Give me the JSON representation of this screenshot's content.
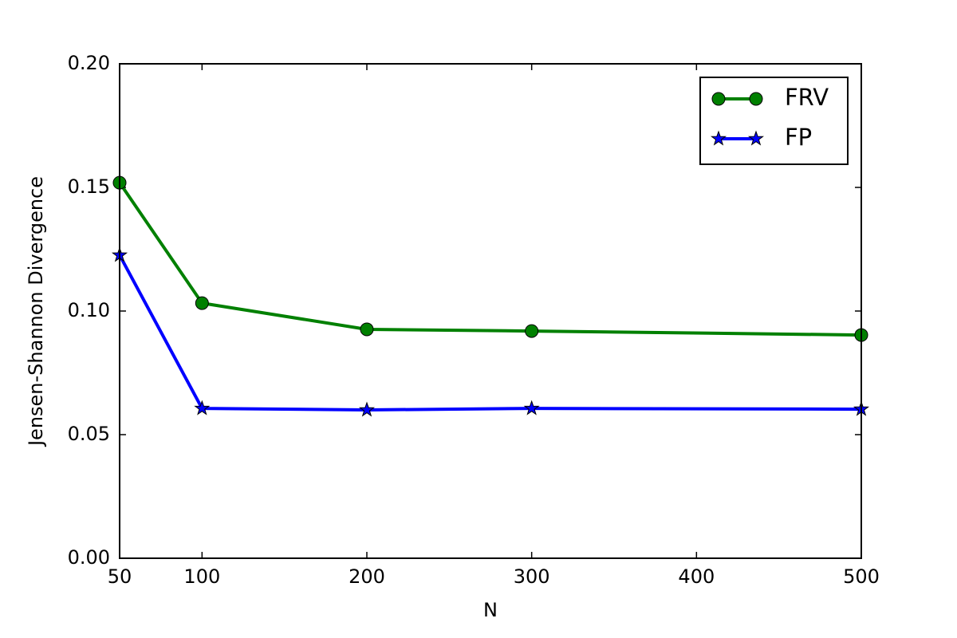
{
  "chart_data": {
    "type": "line",
    "x_label": "N",
    "y_label": "Jensen-Shannon Divergence",
    "x": [
      50,
      100,
      200,
      300,
      500
    ],
    "series": [
      {
        "name": "FRV",
        "color": "#008000",
        "marker": "circle",
        "values": [
          0.1519,
          0.1032,
          0.0926,
          0.0919,
          0.0903
        ]
      },
      {
        "name": "FP",
        "color": "#0000ff",
        "marker": "star",
        "values": [
          0.1226,
          0.0606,
          0.06,
          0.0606,
          0.0603
        ]
      }
    ],
    "xlim": [
      50,
      500
    ],
    "xticks": [
      50,
      100,
      200,
      300,
      400,
      500
    ],
    "ylim": [
      0,
      0.2
    ],
    "yticks": [
      {
        "value": 0,
        "label": "0.00"
      },
      {
        "value": 0.05,
        "label": "0.05"
      },
      {
        "value": 0.1,
        "label": "0.10"
      },
      {
        "value": 0.15,
        "label": "0.15"
      },
      {
        "value": 0.2,
        "label": "0.20"
      }
    ],
    "grid": false,
    "legend": "upper right"
  }
}
